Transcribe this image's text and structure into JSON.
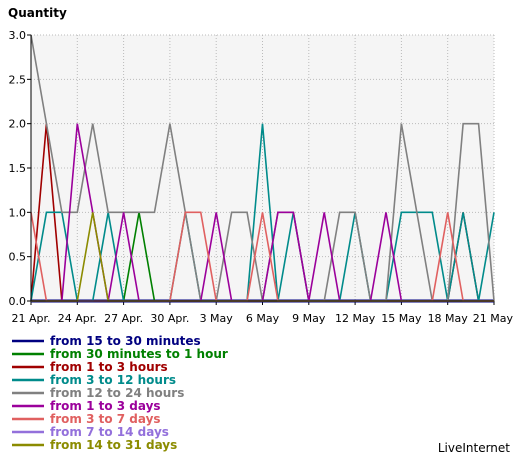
{
  "chart_data": {
    "type": "line",
    "ylabel": "Quantity",
    "ylim": [
      0,
      3
    ],
    "yticks": [
      "0.0",
      "0.5",
      "1.0",
      "1.5",
      "2.0",
      "2.5",
      "3.0"
    ],
    "xlim": [
      0,
      30
    ],
    "xticks": [
      {
        "x": 0,
        "label": "21 Apr."
      },
      {
        "x": 3,
        "label": "24 Apr."
      },
      {
        "x": 6,
        "label": "27 Apr."
      },
      {
        "x": 9,
        "label": "30 Apr."
      },
      {
        "x": 12,
        "label": "3 May"
      },
      {
        "x": 15,
        "label": "6 May"
      },
      {
        "x": 18,
        "label": "9 May"
      },
      {
        "x": 21,
        "label": "12 May"
      },
      {
        "x": 24,
        "label": "15 May"
      },
      {
        "x": 27,
        "label": "18 May"
      },
      {
        "x": 30,
        "label": "21 May"
      }
    ],
    "grid": true,
    "legend_position": "bottom-left",
    "series": [
      {
        "name": "from 15 to 30 minutes",
        "color": "#000080",
        "values": [
          0,
          0,
          0,
          0,
          0,
          0,
          0,
          0,
          0,
          0,
          0,
          0,
          0,
          0,
          0,
          0,
          0,
          0,
          0,
          0,
          0,
          0,
          0,
          0,
          0,
          0,
          0,
          0,
          0,
          0,
          0
        ]
      },
      {
        "name": "from 30 minutes to 1 hour",
        "color": "#008000",
        "values": [
          0,
          0,
          0,
          0,
          0,
          0,
          0,
          1,
          0,
          0,
          0,
          0,
          0,
          0,
          0,
          0,
          0,
          0,
          0,
          0,
          0,
          0,
          0,
          0,
          0,
          0,
          0,
          0,
          0,
          0,
          0
        ]
      },
      {
        "name": "from 1 to 3 hours",
        "color": "#a00000",
        "values": [
          0,
          2,
          0,
          0,
          0,
          0,
          0,
          0,
          0,
          0,
          0,
          0,
          0,
          0,
          0,
          0,
          0,
          0,
          0,
          0,
          0,
          0,
          0,
          0,
          0,
          0,
          0,
          0,
          1,
          0,
          0
        ]
      },
      {
        "name": "from 3 to 12 hours",
        "color": "#008b8b",
        "values": [
          0,
          1,
          1,
          0,
          0,
          1,
          0,
          0,
          0,
          0,
          1,
          0,
          0,
          0,
          0,
          2,
          0,
          1,
          0,
          0,
          0,
          1,
          0,
          0,
          1,
          1,
          1,
          0,
          1,
          0,
          1
        ]
      },
      {
        "name": "from 12 to 24 hours",
        "color": "#808080",
        "values": [
          3,
          2,
          1,
          1,
          2,
          1,
          1,
          1,
          1,
          2,
          1,
          0,
          0,
          1,
          1,
          0,
          1,
          1,
          0,
          0,
          1,
          1,
          0,
          0,
          2,
          1,
          0,
          0,
          2,
          2,
          0
        ]
      },
      {
        "name": "from 1 to 3 days",
        "color": "#9b009b",
        "values": [
          0,
          0,
          0,
          2,
          1,
          0,
          1,
          0,
          0,
          0,
          0,
          0,
          1,
          0,
          0,
          0,
          1,
          1,
          0,
          1,
          0,
          0,
          0,
          1,
          0,
          0,
          0,
          0,
          0,
          0,
          0
        ]
      },
      {
        "name": "from 3 to 7 days",
        "color": "#e06060",
        "values": [
          1,
          0,
          0,
          0,
          0,
          0,
          0,
          0,
          0,
          0,
          1,
          1,
          0,
          0,
          0,
          1,
          0,
          0,
          0,
          0,
          0,
          0,
          0,
          0,
          0,
          0,
          0,
          1,
          0,
          0,
          0
        ]
      },
      {
        "name": "from 7 to 14 days",
        "color": "#9370db",
        "values": [
          0,
          0,
          0,
          0,
          0,
          0,
          0,
          0,
          0,
          0,
          0,
          0,
          0,
          0,
          0,
          0,
          0,
          0,
          0,
          0,
          0,
          0,
          0,
          0,
          0,
          0,
          0,
          0,
          0,
          0,
          0
        ]
      },
      {
        "name": "from 14 to 31 days",
        "color": "#8b8b00",
        "values": [
          0,
          0,
          0,
          0,
          1,
          0,
          0,
          0,
          0,
          0,
          0,
          0,
          0,
          0,
          0,
          0,
          0,
          0,
          0,
          0,
          0,
          0,
          0,
          0,
          0,
          0,
          0,
          0,
          0,
          0,
          0
        ]
      }
    ]
  },
  "brand": "LiveInternet"
}
